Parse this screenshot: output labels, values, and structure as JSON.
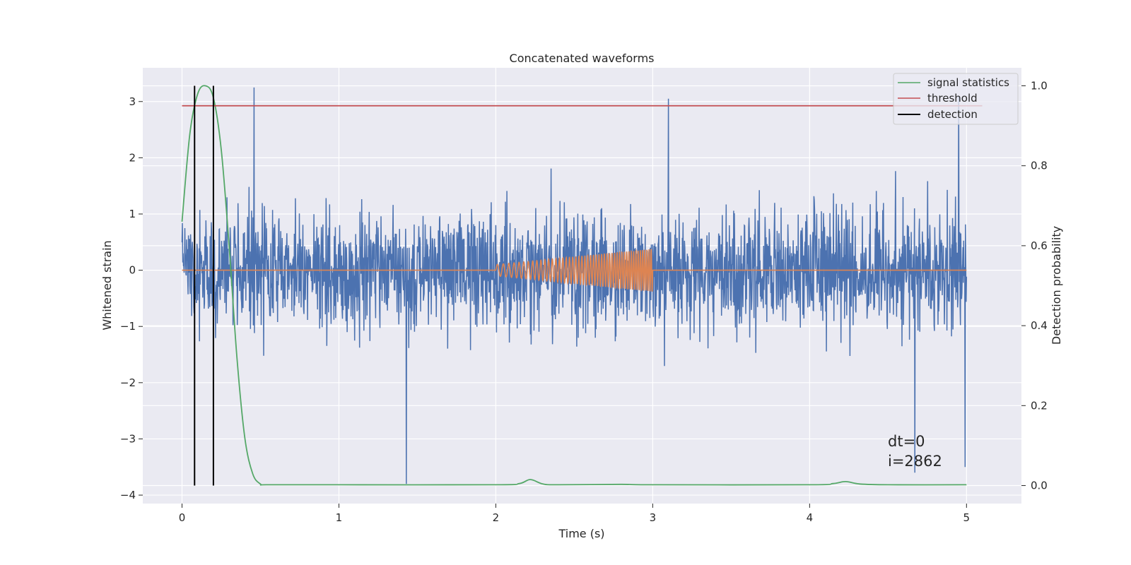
{
  "chart_data": {
    "type": "line",
    "title": "Concatenated waveforms",
    "xlabel": "Time (s)",
    "ylabel": "Whitened strain",
    "ylabel_right": "Detection probability",
    "xlim": [
      -0.25,
      5.35
    ],
    "ylim": [
      -4.15,
      3.6
    ],
    "ylim_right": [
      -0.045,
      1.045
    ],
    "xticks": [
      0,
      1,
      2,
      3,
      4,
      5
    ],
    "xtick_labels": [
      "0",
      "1",
      "2",
      "3",
      "4",
      "5"
    ],
    "yticks": [
      -4,
      -3,
      -2,
      -1,
      0,
      1,
      2,
      3
    ],
    "ytick_labels": [
      "−4",
      "−3",
      "−2",
      "−1",
      "0",
      "1",
      "2",
      "3"
    ],
    "yticks_right": [
      0.0,
      0.2,
      0.4,
      0.6,
      0.8,
      1.0
    ],
    "ytick_labels_right": [
      "0.0",
      "0.2",
      "0.4",
      "0.6",
      "0.8",
      "1.0"
    ],
    "grid": true,
    "legend_position": "top-right",
    "legend": [
      {
        "label": "signal statistics",
        "color": "#55a868"
      },
      {
        "label": "threshold",
        "color": "#c44e52"
      },
      {
        "label": "detection",
        "color": "#000000"
      }
    ],
    "annotation": [
      "dt=0",
      "i=2862"
    ],
    "series": [
      {
        "role": "whitened strain",
        "axis": "left",
        "color": "#4c72b0",
        "x_range": [
          0,
          5
        ],
        "envelope": [
          -2.5,
          2.5
        ],
        "spikes": [
          [
            0.46,
            3.25
          ],
          [
            1.43,
            -3.8
          ],
          [
            3.1,
            3.05
          ],
          [
            4.95,
            3.1
          ],
          [
            4.67,
            -3.6
          ],
          [
            4.99,
            -3.5
          ]
        ]
      },
      {
        "role": "injected chirp",
        "axis": "left",
        "color": "#dd8452",
        "x_range": [
          0,
          5
        ],
        "chirp_range": [
          2.0,
          3.0
        ],
        "amplitude_start": 0.1,
        "amplitude_end": 0.38
      },
      {
        "name": "signal statistics",
        "axis": "right",
        "color": "#55a868",
        "x": [
          0,
          0.05,
          0.1,
          0.15,
          0.2,
          0.25,
          0.3,
          0.35,
          0.4,
          0.45,
          0.5,
          0.55,
          1.0,
          2.0,
          2.15,
          2.22,
          2.3,
          2.4,
          2.8,
          3.0,
          4.0,
          4.15,
          4.23,
          4.32,
          4.5,
          5.0
        ],
        "y": [
          0.66,
          0.88,
          0.98,
          1.0,
          0.97,
          0.84,
          0.6,
          0.32,
          0.12,
          0.03,
          0.004,
          0.002,
          0.002,
          0.002,
          0.005,
          0.015,
          0.004,
          0.002,
          0.003,
          0.002,
          0.002,
          0.005,
          0.01,
          0.004,
          0.002,
          0.002
        ]
      },
      {
        "name": "threshold",
        "axis": "right",
        "color": "#c44e52",
        "x": [
          0,
          5.1
        ],
        "y": [
          0.95,
          0.95
        ]
      },
      {
        "name": "detection",
        "axis": "right",
        "color": "#000000",
        "vlines_x": [
          0.08,
          0.2
        ],
        "y_range": [
          0.0,
          1.0
        ]
      }
    ]
  }
}
